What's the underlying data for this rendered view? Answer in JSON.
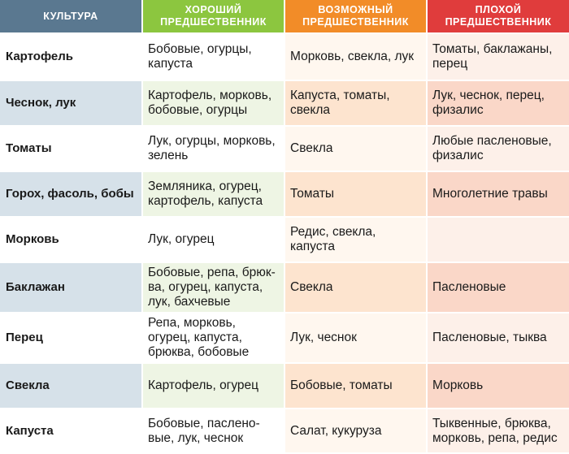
{
  "headers": {
    "crop": "КУЛЬТУРА",
    "good": "ХОРОШИЙ ПРЕДШЕСТВЕННИК",
    "possible": "ВОЗМОЖНЫЙ ПРЕДШЕСТВЕННИК",
    "bad": "ПЛОХОЙ ПРЕДШЕСТВЕННИК"
  },
  "colors": {
    "crop_header": "#5a7890",
    "good_header": "#8cc63f",
    "possible_header": "#f28c28",
    "bad_header": "#e03c3c"
  },
  "rows": [
    {
      "crop": "Картофель",
      "good": "Бобовые, огурцы, капуста",
      "possible": "Морковь, свекла, лук",
      "bad": "Томаты, баклажаны, перец"
    },
    {
      "crop": "Чеснок, лук",
      "good": "Картофель, морковь, бобовые, огурцы",
      "possible": "Капуста, томаты, свекла",
      "bad": "Лук, чеснок, перец, физалис"
    },
    {
      "crop": "Томаты",
      "good": "Лук, огурцы, морковь, зелень",
      "possible": "Свекла",
      "bad": "Любые пасленовые, физалис"
    },
    {
      "crop": "Горох, фасоль, бобы",
      "good": "Земляника, огурец, картофель, капуста",
      "possible": "Томаты",
      "bad": "Многолетние травы"
    },
    {
      "crop": "Морковь",
      "good": "Лук, огурец",
      "possible": "Редис, свекла, капуста",
      "bad": ""
    },
    {
      "crop": "Баклажан",
      "good": "Бобовые, репа, брюк- ва, огурец, капуста, лук, бахчевые",
      "possible": "Свекла",
      "bad": "Пасленовые"
    },
    {
      "crop": "Перец",
      "good": "Репа, морковь, огурец, капуста, брюква, бобовые",
      "possible": "Лук, чеснок",
      "bad": "Пасленовые, тыква"
    },
    {
      "crop": "Свекла",
      "good": "Картофель, огурец",
      "possible": "Бобовые, томаты",
      "bad": "Морковь"
    },
    {
      "crop": "Капуста",
      "good": "Бобовые, пасленo- вые, лук, чеснок",
      "possible": "Салат, кукуруза",
      "bad": "Тыквенные, брюква, морковь, репа, редис"
    }
  ]
}
